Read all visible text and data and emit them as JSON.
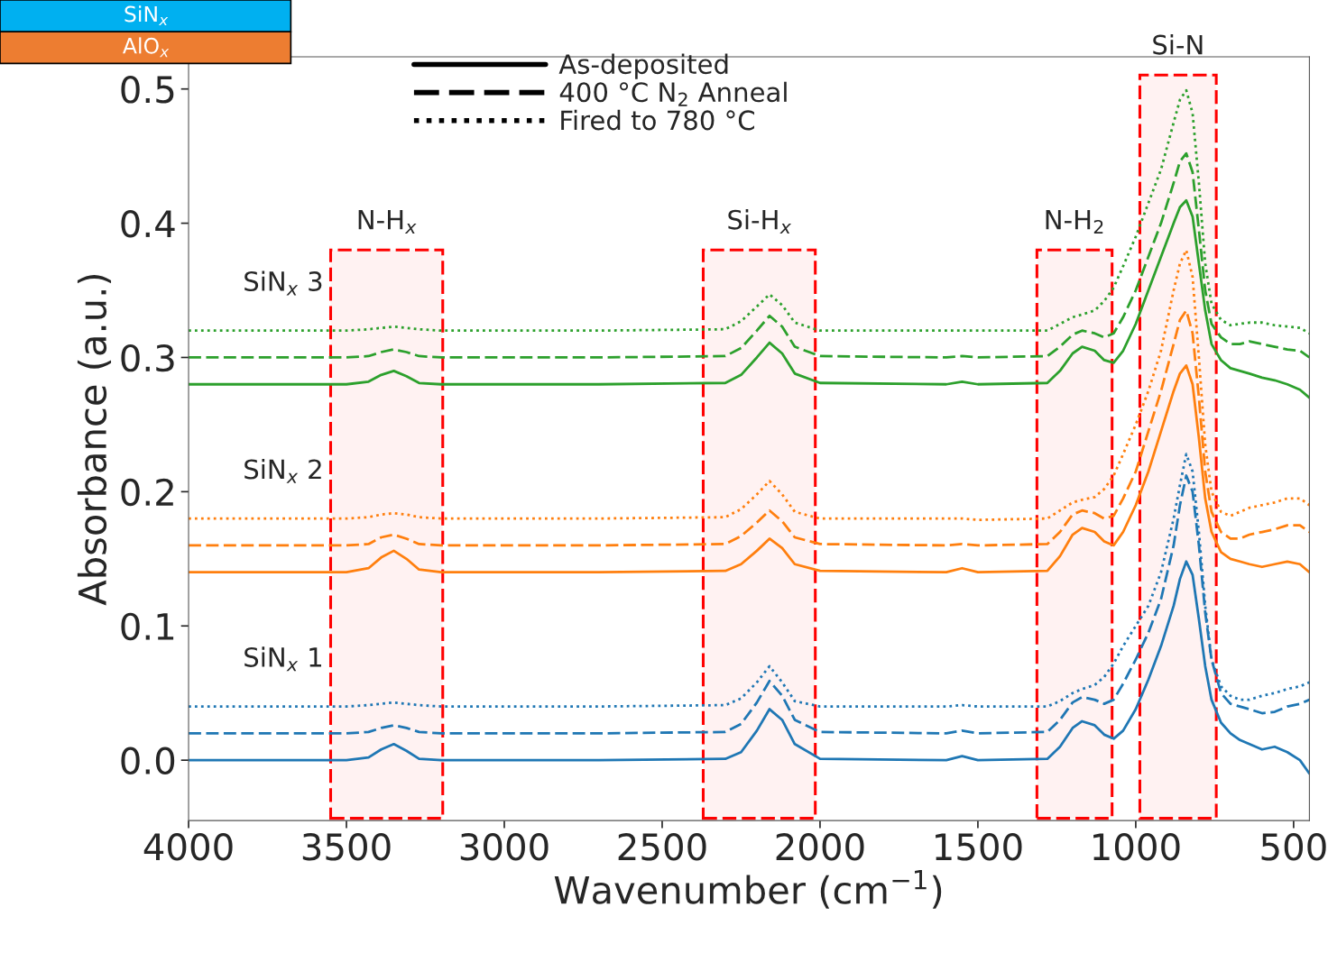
{
  "chart_data": {
    "type": "line",
    "xlabel": "Wavenumber (cm$^{−1}$)",
    "ylabel": "Absorbance (a.u.)",
    "xlim": [
      4000,
      450
    ],
    "xticks": [
      4000,
      3500,
      3000,
      2500,
      2000,
      1500,
      1000,
      500
    ],
    "ylim": [
      -0.045,
      0.524
    ],
    "yticks": [
      {
        "value": 0,
        "label": "0.0"
      },
      0.1,
      0.2,
      0.3,
      0.4,
      0.5
    ],
    "grid": false,
    "legend": "top left",
    "x": [
      4000,
      3500,
      3430,
      3390,
      3350,
      3310,
      3270,
      3200,
      2700,
      2300,
      2250,
      2200,
      2160,
      2120,
      2080,
      2000,
      1600,
      1550,
      1500,
      1280,
      1240,
      1200,
      1170,
      1130,
      1100,
      1070,
      1040,
      1000,
      960,
      920,
      880,
      860,
      840,
      820,
      800,
      780,
      760,
      730,
      700,
      670,
      640,
      600,
      560,
      520,
      480,
      450
    ],
    "series": [
      {
        "color": "#1f77b4",
        "line_style": "solid",
        "values": [
          0,
          0,
          0.002,
          0.008,
          0.012,
          0.007,
          0.001,
          0,
          0,
          0.001,
          0.006,
          0.022,
          0.038,
          0.03,
          0.012,
          0.001,
          0,
          0.003,
          0,
          0.001,
          0.01,
          0.024,
          0.029,
          0.026,
          0.019,
          0.016,
          0.022,
          0.038,
          0.06,
          0.085,
          0.115,
          0.135,
          0.148,
          0.138,
          0.105,
          0.07,
          0.045,
          0.028,
          0.02,
          0.015,
          0.012,
          0.008,
          0.01,
          0.006,
          0.0,
          -0.01
        ]
      },
      {
        "color": "#1f77b4",
        "line_style": "dashed",
        "values": [
          0.02,
          0.02,
          0.021,
          0.024,
          0.026,
          0.024,
          0.021,
          0.02,
          0.02,
          0.021,
          0.027,
          0.043,
          0.059,
          0.048,
          0.03,
          0.021,
          0.02,
          0.022,
          0.02,
          0.021,
          0.03,
          0.043,
          0.047,
          0.045,
          0.042,
          0.045,
          0.057,
          0.075,
          0.095,
          0.12,
          0.16,
          0.19,
          0.212,
          0.2,
          0.16,
          0.11,
          0.075,
          0.05,
          0.042,
          0.04,
          0.038,
          0.035,
          0.036,
          0.04,
          0.042,
          0.045
        ]
      },
      {
        "color": "#1f77b4",
        "line_style": "dotted",
        "values": [
          0.04,
          0.04,
          0.041,
          0.042,
          0.043,
          0.042,
          0.041,
          0.04,
          0.04,
          0.041,
          0.046,
          0.058,
          0.07,
          0.058,
          0.044,
          0.04,
          0.04,
          0.041,
          0.04,
          0.04,
          0.044,
          0.05,
          0.053,
          0.056,
          0.062,
          0.072,
          0.085,
          0.1,
          0.115,
          0.14,
          0.18,
          0.205,
          0.228,
          0.215,
          0.17,
          0.115,
          0.075,
          0.055,
          0.048,
          0.045,
          0.045,
          0.048,
          0.05,
          0.053,
          0.055,
          0.058
        ]
      },
      {
        "color": "#ff7f0e",
        "line_style": "solid",
        "values": [
          0.14,
          0.14,
          0.143,
          0.151,
          0.156,
          0.15,
          0.142,
          0.14,
          0.14,
          0.141,
          0.146,
          0.156,
          0.165,
          0.158,
          0.146,
          0.141,
          0.14,
          0.143,
          0.14,
          0.141,
          0.152,
          0.168,
          0.173,
          0.17,
          0.163,
          0.16,
          0.17,
          0.19,
          0.215,
          0.245,
          0.275,
          0.288,
          0.294,
          0.28,
          0.24,
          0.195,
          0.17,
          0.155,
          0.15,
          0.148,
          0.146,
          0.144,
          0.146,
          0.148,
          0.146,
          0.14
        ]
      },
      {
        "color": "#ff7f0e",
        "line_style": "dashed",
        "values": [
          0.16,
          0.16,
          0.161,
          0.166,
          0.168,
          0.165,
          0.161,
          0.16,
          0.16,
          0.161,
          0.167,
          0.177,
          0.186,
          0.178,
          0.166,
          0.161,
          0.16,
          0.161,
          0.16,
          0.161,
          0.17,
          0.183,
          0.186,
          0.184,
          0.18,
          0.182,
          0.195,
          0.215,
          0.245,
          0.275,
          0.31,
          0.328,
          0.335,
          0.318,
          0.27,
          0.215,
          0.185,
          0.17,
          0.165,
          0.165,
          0.168,
          0.17,
          0.172,
          0.175,
          0.175,
          0.17
        ]
      },
      {
        "color": "#ff7f0e",
        "line_style": "dotted",
        "values": [
          0.18,
          0.18,
          0.181,
          0.183,
          0.184,
          0.183,
          0.181,
          0.18,
          0.18,
          0.181,
          0.187,
          0.198,
          0.208,
          0.198,
          0.185,
          0.18,
          0.18,
          0.18,
          0.179,
          0.18,
          0.186,
          0.192,
          0.194,
          0.196,
          0.202,
          0.212,
          0.228,
          0.25,
          0.275,
          0.305,
          0.35,
          0.37,
          0.38,
          0.36,
          0.3,
          0.235,
          0.2,
          0.185,
          0.182,
          0.185,
          0.188,
          0.19,
          0.192,
          0.195,
          0.195,
          0.19
        ]
      },
      {
        "color": "#2ca02c",
        "line_style": "solid",
        "values": [
          0.28,
          0.28,
          0.282,
          0.287,
          0.29,
          0.286,
          0.281,
          0.28,
          0.28,
          0.281,
          0.287,
          0.3,
          0.311,
          0.303,
          0.288,
          0.281,
          0.28,
          0.282,
          0.28,
          0.281,
          0.29,
          0.303,
          0.308,
          0.305,
          0.298,
          0.296,
          0.305,
          0.325,
          0.35,
          0.375,
          0.4,
          0.412,
          0.417,
          0.405,
          0.37,
          0.335,
          0.31,
          0.298,
          0.292,
          0.29,
          0.288,
          0.285,
          0.283,
          0.28,
          0.276,
          0.27
        ]
      },
      {
        "color": "#2ca02c",
        "line_style": "dashed",
        "values": [
          0.3,
          0.3,
          0.301,
          0.304,
          0.306,
          0.304,
          0.301,
          0.3,
          0.3,
          0.301,
          0.307,
          0.32,
          0.331,
          0.323,
          0.308,
          0.301,
          0.3,
          0.301,
          0.3,
          0.301,
          0.308,
          0.317,
          0.32,
          0.318,
          0.315,
          0.318,
          0.33,
          0.35,
          0.375,
          0.4,
          0.43,
          0.446,
          0.452,
          0.438,
          0.395,
          0.35,
          0.325,
          0.315,
          0.31,
          0.31,
          0.312,
          0.31,
          0.308,
          0.306,
          0.305,
          0.3
        ]
      },
      {
        "color": "#2ca02c",
        "line_style": "dotted",
        "values": [
          0.32,
          0.32,
          0.321,
          0.322,
          0.323,
          0.322,
          0.321,
          0.32,
          0.32,
          0.321,
          0.327,
          0.338,
          0.347,
          0.339,
          0.326,
          0.32,
          0.32,
          0.32,
          0.32,
          0.32,
          0.325,
          0.33,
          0.332,
          0.335,
          0.342,
          0.352,
          0.368,
          0.39,
          0.415,
          0.44,
          0.475,
          0.492,
          0.499,
          0.482,
          0.43,
          0.37,
          0.34,
          0.328,
          0.324,
          0.325,
          0.326,
          0.326,
          0.324,
          0.323,
          0.322,
          0.318
        ]
      }
    ],
    "bands": [
      {
        "axis": "x",
        "from": 3550,
        "to": 3195,
        "label": "N-H$_{x}$",
        "color": "#ff0000"
      },
      {
        "axis": "x",
        "from": 2370,
        "to": 2015,
        "label": "Si-H$_{x}$",
        "color": "#ff0000"
      },
      {
        "axis": "x",
        "from": 1313,
        "to": 1075,
        "label": "N-H$_{2}$",
        "color": "#ff0000"
      },
      {
        "axis": "x",
        "from": 987,
        "to": 745,
        "label": "Si-N",
        "color": "#ff0000"
      }
    ],
    "annotations": [
      "SiN$_{x}$",
      "AlO$_{x}$",
      "As-deposited",
      "400 °C N$_{2}$ Anneal",
      "Fired to 780 °C",
      "SiN$_{x}$ 3",
      "SiN$_{x}$ 2",
      "SiN$_{x}$ 1"
    ]
  }
}
